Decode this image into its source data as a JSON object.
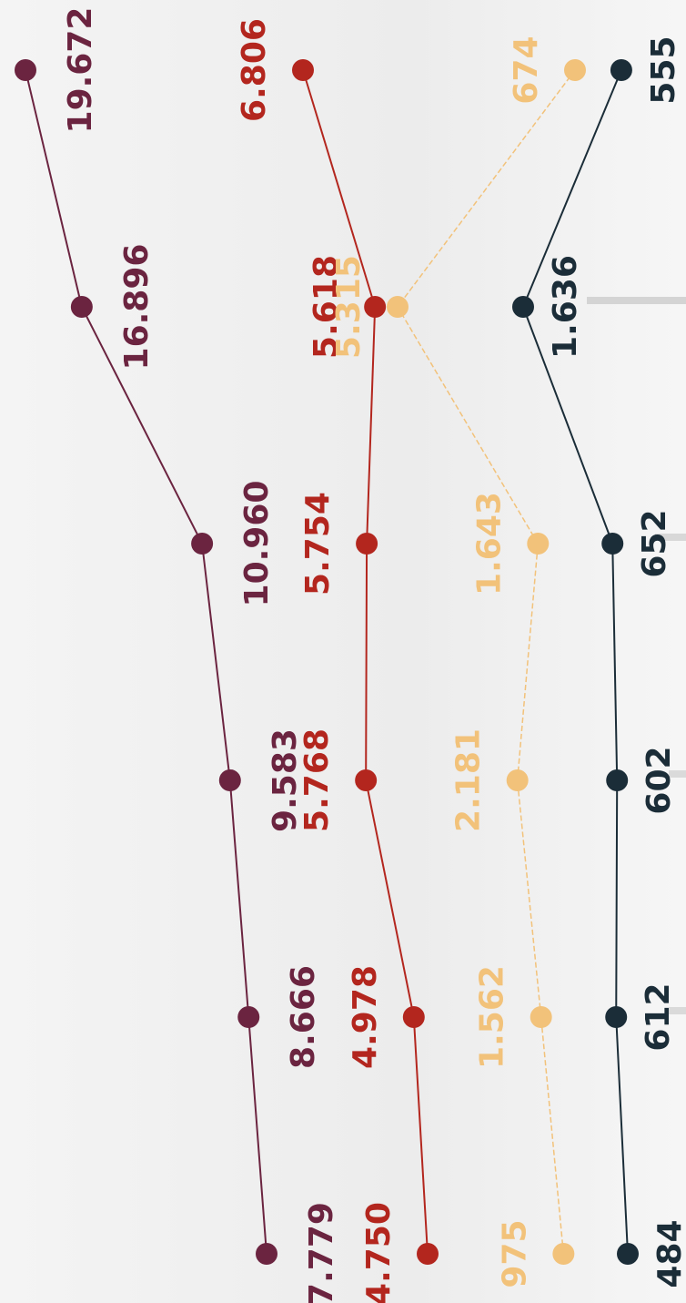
{
  "chart_data": {
    "type": "line",
    "series": [
      {
        "color": "#6b2440",
        "values": [
          19672,
          16896,
          10960,
          9583,
          8666,
          7779
        ],
        "value_labels": [
          "19.672",
          "16.896",
          "10.960",
          "9.583",
          "8.666",
          "7.779"
        ]
      },
      {
        "color": "#b3261e",
        "values": [
          6806,
          5618,
          5754,
          5768,
          4978,
          4750
        ],
        "value_labels": [
          "6.806",
          "5.618",
          "5.754",
          "5.768",
          "4.978",
          "4.750"
        ]
      },
      {
        "color": "#f2c27a",
        "values": [
          674,
          5315,
          1643,
          2181,
          1562,
          975
        ],
        "value_labels": [
          "674",
          "5.315",
          "1.643",
          "2.181",
          "1.562",
          "975"
        ]
      },
      {
        "color": "#1b2d38",
        "values": [
          555,
          1636,
          652,
          602,
          612,
          484
        ],
        "value_labels": [
          "555",
          "1.636",
          "652",
          "602",
          "612",
          "484"
        ]
      }
    ]
  }
}
